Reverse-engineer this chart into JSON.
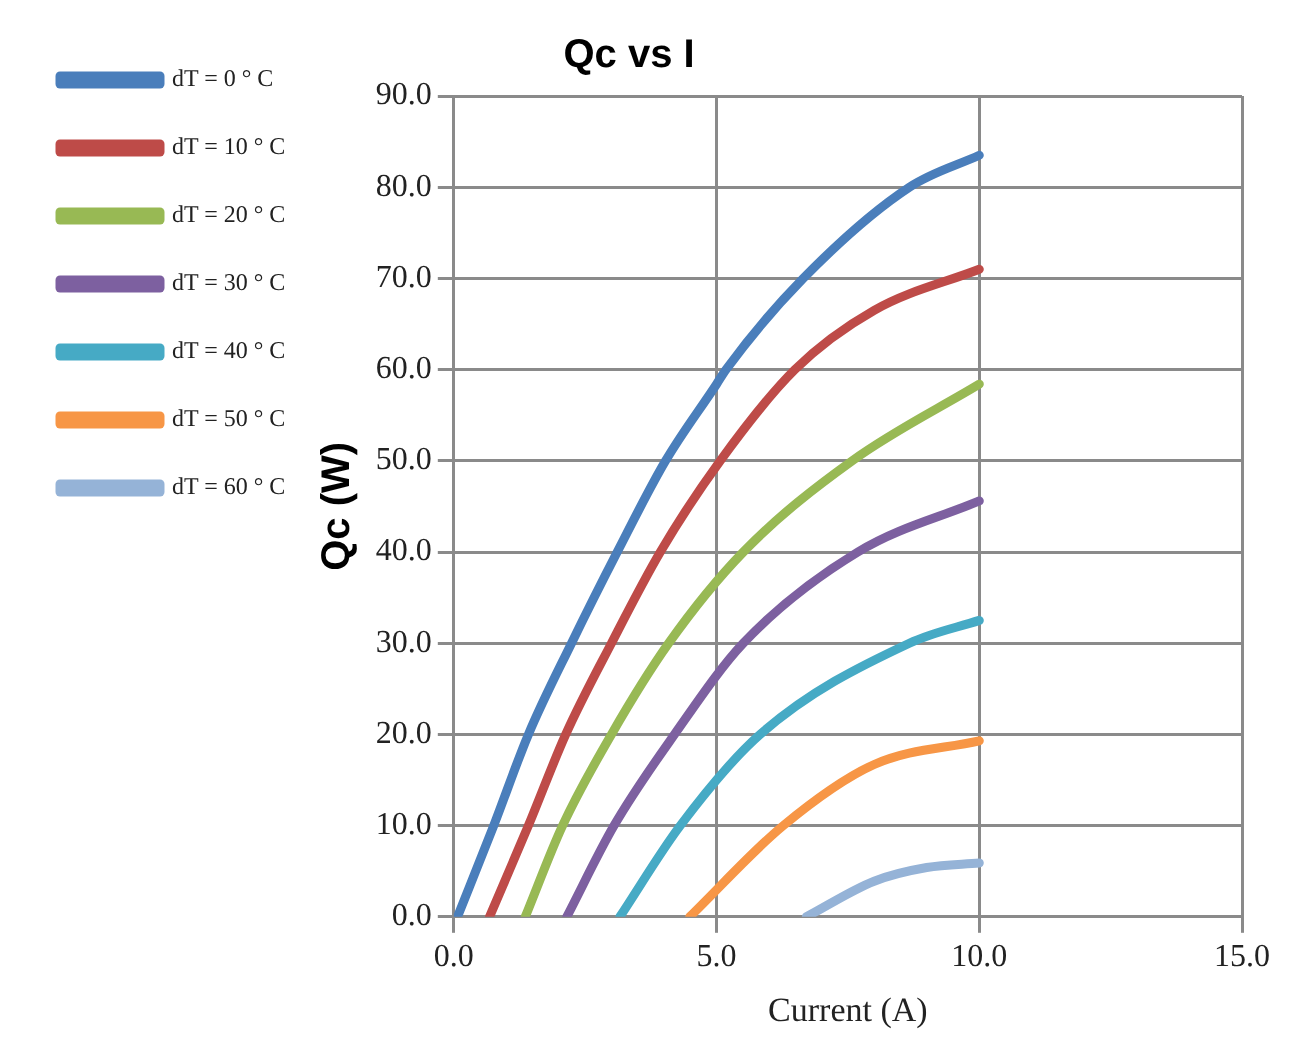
{
  "chart_data": {
    "type": "line",
    "title": "Qc vs I",
    "xlabel": "Current (A)",
    "ylabel": "Qc (W)",
    "xlim": [
      0,
      15
    ],
    "xticks": [
      {
        "value": 0,
        "label": "0.0"
      },
      {
        "value": 5,
        "label": "5.0"
      },
      {
        "value": 10,
        "label": "10.0"
      },
      {
        "value": 15,
        "label": "15.0"
      }
    ],
    "ylim": [
      0,
      90
    ],
    "yticks": [
      {
        "value": 0,
        "label": "0.0"
      },
      {
        "value": 10,
        "label": "10.0"
      },
      {
        "value": 20,
        "label": "20.0"
      },
      {
        "value": 30,
        "label": "30.0"
      },
      {
        "value": 40,
        "label": "40.0"
      },
      {
        "value": 50,
        "label": "50.0"
      },
      {
        "value": 60,
        "label": "60.0"
      },
      {
        "value": 70,
        "label": "70.0"
      },
      {
        "value": 80,
        "label": "80.0"
      },
      {
        "value": 90,
        "label": "90.0"
      }
    ],
    "grid": true,
    "legend": "left",
    "marker": "none",
    "line_style": "solid",
    "series": [
      {
        "name": "dT = 0 ° C",
        "color": "#4a7ebb",
        "x": [
          0.07,
          0.76,
          1.42,
          2.24,
          3.11,
          4.03,
          5,
          5.18,
          6.65,
          8.67,
          10
        ],
        "values": [
          0,
          10,
          20,
          30,
          40,
          50,
          58.4,
          60,
          70,
          80,
          83.5
        ]
      },
      {
        "name": "dT = 10 ° C",
        "color": "#be4b48",
        "x": [
          0.68,
          1.42,
          2.13,
          3.0,
          3.93,
          5.07,
          6.49,
          8,
          10
        ],
        "values": [
          0,
          10,
          20,
          30,
          40,
          50,
          60,
          66.5,
          71
        ]
      },
      {
        "name": "dT = 20 ° C",
        "color": "#98b954",
        "x": [
          1.36,
          2.07,
          3.0,
          4.09,
          5.51,
          7.58,
          10
        ],
        "values": [
          0,
          10,
          20,
          30,
          40,
          50,
          58.4
        ]
      },
      {
        "name": "dT = 30 ° C",
        "color": "#7d60a0",
        "x": [
          2.15,
          3.05,
          4.2,
          5.51,
          7.69,
          10
        ],
        "values": [
          0,
          10,
          20,
          30,
          40,
          45.6
        ]
      },
      {
        "name": "dT = 40 ° C",
        "color": "#46aac5",
        "x": [
          3.16,
          4.31,
          5.83,
          8.67,
          10
        ],
        "values": [
          0,
          10,
          20,
          30,
          32.5
        ]
      },
      {
        "name": "dT = 50 ° C",
        "color": "#f79646",
        "x": [
          4.49,
          6.27,
          8,
          10
        ],
        "values": [
          0,
          10,
          16.7,
          19.3
        ]
      },
      {
        "name": "dT = 60 ° C",
        "color": "#95b3d7",
        "x": [
          6.71,
          8,
          9,
          10
        ],
        "values": [
          0,
          3.9,
          5.4,
          5.9
        ]
      }
    ]
  }
}
